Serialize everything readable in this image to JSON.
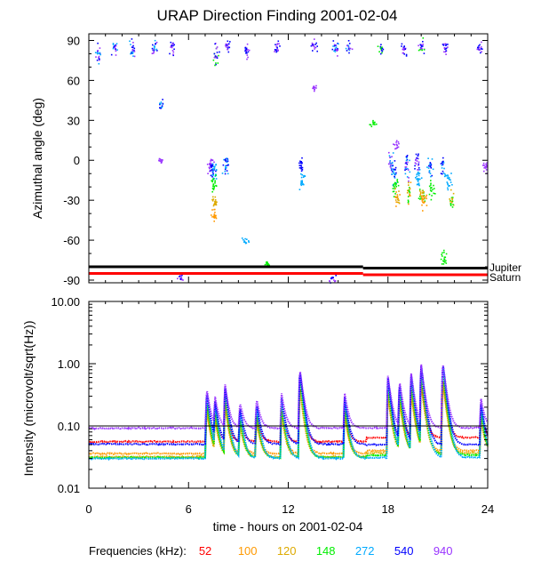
{
  "figure": {
    "title": "URAP Direction Finding  2001-02-04",
    "xlabel": "time - hours on 2001-02-04",
    "legend_label": "Frequencies (kHz):"
  },
  "chart_data": [
    {
      "type": "scatter",
      "title": "URAP Direction Finding  2001-02-04",
      "ylabel": "Azimuthal angle (deg)",
      "xlim": [
        0,
        24
      ],
      "ylim": [
        -92,
        95
      ],
      "x_ticks": [
        0,
        6,
        12,
        18,
        24
      ],
      "y_ticks": [
        90,
        60,
        30,
        0,
        -30,
        -60,
        -90
      ],
      "reference_lines": [
        {
          "name": "Jupiter",
          "color": "#000000",
          "segments": [
            {
              "x": [
                0,
                16.5
              ],
              "y": -80
            },
            {
              "x": [
                16.5,
                24
              ],
              "y": -81
            }
          ]
        },
        {
          "name": "Saturn",
          "color": "#ff0000",
          "segments": [
            {
              "x": [
                0,
                16.5
              ],
              "y": -85
            },
            {
              "x": [
                16.5,
                24
              ],
              "y": -86
            }
          ]
        }
      ],
      "clusters": [
        {
          "t": 0.5,
          "y": 82,
          "s": 6,
          "f": [
            272,
            540,
            940
          ]
        },
        {
          "t": 1.5,
          "y": 85,
          "s": 5,
          "f": [
            272,
            540,
            940
          ]
        },
        {
          "t": 2.6,
          "y": 84,
          "s": 6,
          "f": [
            272,
            540,
            940
          ]
        },
        {
          "t": 3.9,
          "y": 86,
          "s": 6,
          "f": [
            540,
            940,
            272
          ]
        },
        {
          "t": 5.0,
          "y": 84,
          "s": 5,
          "f": [
            540,
            940
          ]
        },
        {
          "t": 7.6,
          "y": 80,
          "s": 8,
          "f": [
            540,
            940,
            148
          ]
        },
        {
          "t": 8.3,
          "y": 86,
          "s": 4,
          "f": [
            540,
            940
          ]
        },
        {
          "t": 9.5,
          "y": 82,
          "s": 6,
          "f": [
            540,
            940
          ]
        },
        {
          "t": 11.3,
          "y": 84,
          "s": 5,
          "f": [
            940,
            540
          ]
        },
        {
          "t": 13.5,
          "y": 86,
          "s": 4,
          "f": [
            940,
            540
          ]
        },
        {
          "t": 14.8,
          "y": 84,
          "s": 6,
          "f": [
            540,
            940,
            272
          ]
        },
        {
          "t": 15.6,
          "y": 86,
          "s": 5,
          "f": [
            272,
            540,
            940
          ]
        },
        {
          "t": 17.5,
          "y": 85,
          "s": 4,
          "f": [
            148,
            540
          ]
        },
        {
          "t": 18.9,
          "y": 84,
          "s": 5,
          "f": [
            540,
            940
          ]
        },
        {
          "t": 20.0,
          "y": 86,
          "s": 6,
          "f": [
            540,
            940,
            148
          ]
        },
        {
          "t": 21.4,
          "y": 84,
          "s": 5,
          "f": [
            940,
            540
          ]
        },
        {
          "t": 23.5,
          "y": 84,
          "s": 4,
          "f": [
            940,
            540
          ]
        },
        {
          "t": 7.3,
          "y": -3,
          "s": 5,
          "f": [
            940
          ]
        },
        {
          "t": 7.4,
          "y": -6,
          "s": 5,
          "f": [
            540
          ]
        },
        {
          "t": 7.5,
          "y": -8,
          "s": 6,
          "f": [
            272
          ]
        },
        {
          "t": 7.5,
          "y": -18,
          "s": 6,
          "f": [
            148
          ]
        },
        {
          "t": 7.5,
          "y": -30,
          "s": 5,
          "f": [
            120
          ]
        },
        {
          "t": 7.5,
          "y": -40,
          "s": 5,
          "f": [
            100
          ]
        },
        {
          "t": 8.2,
          "y": -3,
          "s": 8,
          "f": [
            272,
            540
          ]
        },
        {
          "t": 12.7,
          "y": -3,
          "s": 5,
          "f": [
            540
          ]
        },
        {
          "t": 12.8,
          "y": -15,
          "s": 6,
          "f": [
            272
          ]
        },
        {
          "t": 18.1,
          "y": 0,
          "s": 6,
          "f": [
            272,
            940
          ]
        },
        {
          "t": 18.3,
          "y": -10,
          "s": 8,
          "f": [
            540,
            272
          ]
        },
        {
          "t": 18.4,
          "y": -20,
          "s": 6,
          "f": [
            148
          ]
        },
        {
          "t": 18.5,
          "y": -28,
          "s": 6,
          "f": [
            120,
            100
          ]
        },
        {
          "t": 19.1,
          "y": -4,
          "s": 8,
          "f": [
            540,
            940,
            272
          ]
        },
        {
          "t": 19.2,
          "y": -25,
          "s": 7,
          "f": [
            148,
            120,
            100
          ]
        },
        {
          "t": 19.7,
          "y": 0,
          "s": 6,
          "f": [
            940,
            540
          ]
        },
        {
          "t": 19.8,
          "y": -12,
          "s": 8,
          "f": [
            272
          ]
        },
        {
          "t": 20.0,
          "y": -25,
          "s": 7,
          "f": [
            148,
            120
          ]
        },
        {
          "t": 20.1,
          "y": -30,
          "s": 6,
          "f": [
            100
          ]
        },
        {
          "t": 20.5,
          "y": -5,
          "s": 7,
          "f": [
            272,
            540
          ]
        },
        {
          "t": 20.6,
          "y": -22,
          "s": 6,
          "f": [
            148
          ]
        },
        {
          "t": 21.3,
          "y": -5,
          "s": 6,
          "f": [
            540,
            272
          ]
        },
        {
          "t": 21.6,
          "y": -15,
          "s": 6,
          "f": [
            272
          ]
        },
        {
          "t": 21.8,
          "y": -30,
          "s": 6,
          "f": [
            148,
            120
          ]
        },
        {
          "t": 4.3,
          "y": 42,
          "s": 3,
          "f": [
            272,
            540
          ]
        },
        {
          "t": 4.3,
          "y": 0,
          "s": 2,
          "f": [
            940
          ]
        },
        {
          "t": 13.5,
          "y": 55,
          "s": 2,
          "f": [
            940
          ]
        },
        {
          "t": 17.1,
          "y": 28,
          "s": 2,
          "f": [
            148
          ]
        },
        {
          "t": 18.5,
          "y": 12,
          "s": 3,
          "f": [
            940
          ]
        },
        {
          "t": 23.8,
          "y": -5,
          "s": 4,
          "f": [
            940
          ]
        },
        {
          "t": 9.4,
          "y": -60,
          "s": 2,
          "f": [
            272
          ]
        },
        {
          "t": 5.5,
          "y": -88,
          "s": 3,
          "f": [
            540,
            940
          ]
        },
        {
          "t": 14.6,
          "y": -89,
          "s": 3,
          "f": [
            940,
            540
          ]
        },
        {
          "t": 21.3,
          "y": -72,
          "s": 6,
          "f": [
            148
          ]
        },
        {
          "t": 10.7,
          "y": -77,
          "s": 2,
          "f": [
            148
          ]
        }
      ]
    },
    {
      "type": "line",
      "ylabel": "Intensity (microvolt/sqrt(Hz))",
      "yscale": "log",
      "xlim": [
        0,
        24
      ],
      "ylim": [
        0.01,
        10
      ],
      "x_ticks": [
        0,
        6,
        12,
        18,
        24
      ],
      "y_tick_labels": [
        "10.00",
        "1.00",
        "0.10",
        "0.01"
      ],
      "reference_line": 0.1,
      "baselines_kHz": [
        {
          "freq": 52,
          "before_18h": 0.056,
          "after_18h": 0.065
        },
        {
          "freq": 100,
          "before_18h": 0.036,
          "after_18h": 0.04
        },
        {
          "freq": 120,
          "before_18h": 0.032,
          "after_18h": 0.037
        },
        {
          "freq": 148,
          "before_18h": 0.031,
          "after_18h": 0.034
        },
        {
          "freq": 272,
          "before_18h": 0.03,
          "after_18h": 0.031
        },
        {
          "freq": 540,
          "before_18h": 0.051,
          "after_18h": 0.05
        },
        {
          "freq": 940,
          "before_18h": 0.092,
          "after_18h": 0.093
        }
      ],
      "bursts": [
        {
          "t": 7.1,
          "a": 2.5
        },
        {
          "t": 7.6,
          "a": 1.5
        },
        {
          "t": 8.2,
          "a": 3.0
        },
        {
          "t": 9.1,
          "a": 1.2
        },
        {
          "t": 10.1,
          "a": 1.5
        },
        {
          "t": 11.6,
          "a": 2.0
        },
        {
          "t": 12.7,
          "a": 6.0
        },
        {
          "t": 15.4,
          "a": 2.0
        },
        {
          "t": 18.0,
          "a": 4.5
        },
        {
          "t": 18.7,
          "a": 3.5
        },
        {
          "t": 19.4,
          "a": 5.0
        },
        {
          "t": 20.0,
          "a": 7.0
        },
        {
          "t": 21.3,
          "a": 8.0
        },
        {
          "t": 23.6,
          "a": 1.5
        }
      ]
    }
  ],
  "legend": {
    "label": "Frequencies (kHz):",
    "items": [
      {
        "freq": "52",
        "color": "#ff0000"
      },
      {
        "freq": "100",
        "color": "#ff9900"
      },
      {
        "freq": "120",
        "color": "#ddaa00"
      },
      {
        "freq": "148",
        "color": "#00ee00"
      },
      {
        "freq": "272",
        "color": "#00aaff"
      },
      {
        "freq": "540",
        "color": "#0000ff"
      },
      {
        "freq": "940",
        "color": "#9933ff"
      }
    ]
  },
  "planet_labels": {
    "jupiter": "Jupiter",
    "saturn": "Saturn"
  }
}
